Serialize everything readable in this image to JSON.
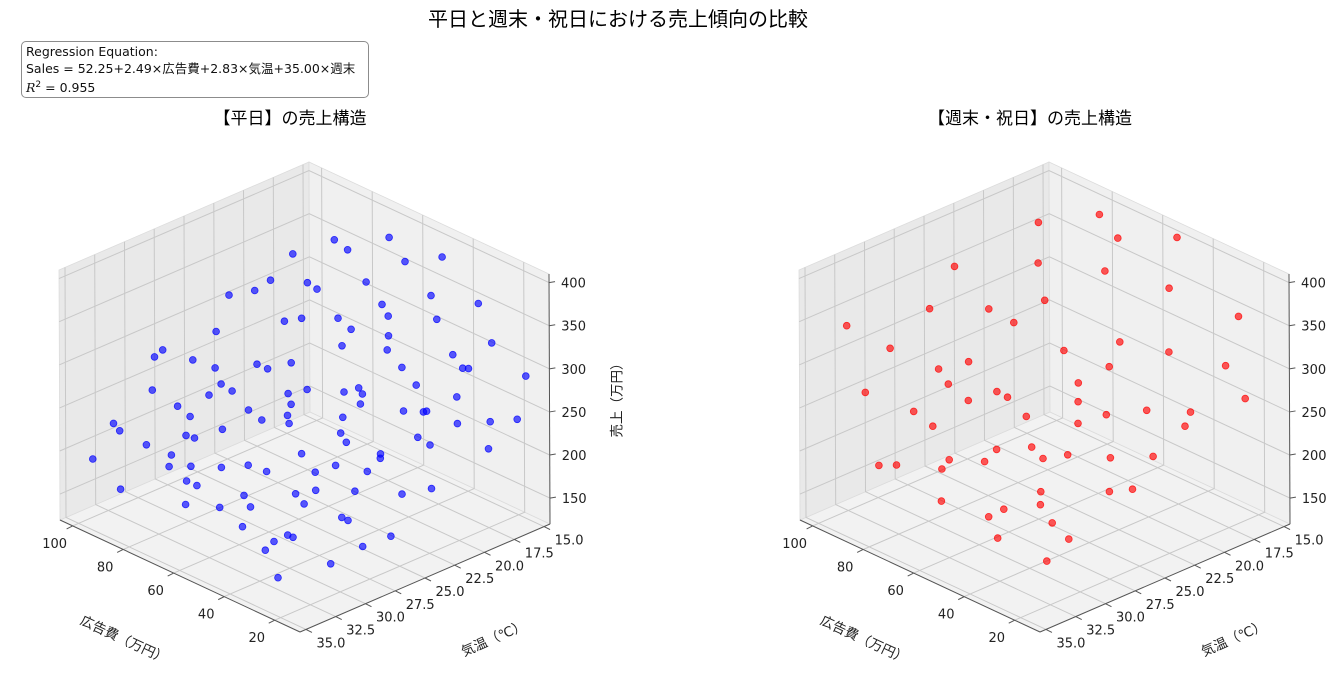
{
  "figure": {
    "title": "平日と週末・祝日における売上傾向の比較",
    "equation": {
      "heading": "Regression Equation:",
      "formula": "Sales = 52.25+2.49×広告費+2.83×気温+35.00×週末",
      "r2_label": "R",
      "r2_value": "= 0.955"
    }
  },
  "chart_data": [
    {
      "type": "scatter",
      "title": "【平日】の売上構造",
      "xlabel": "広告費（万円）",
      "ylabel": "気温（℃）",
      "zlabel": "売上（万円）",
      "xlim": [
        10,
        105
      ],
      "ylim": [
        14.5,
        35.5
      ],
      "zlim": [
        120,
        410
      ],
      "x_ticks": [
        "100",
        "80",
        "60",
        "40",
        "20"
      ],
      "y_ticks": [
        "15.0",
        "17.5",
        "20.0",
        "22.5",
        "25.0",
        "27.5",
        "30.0",
        "32.5",
        "35.0"
      ],
      "z_ticks": [
        "150",
        "200",
        "250",
        "300",
        "350",
        "400"
      ],
      "color": "#0000ff",
      "points": [
        [
          95,
          18,
          338
        ],
        [
          88,
          16,
          352
        ],
        [
          92,
          24,
          330
        ],
        [
          85,
          22,
          345
        ],
        [
          78,
          17,
          360
        ],
        [
          83,
          27,
          318
        ],
        [
          76,
          20,
          335
        ],
        [
          71,
          15,
          372
        ],
        [
          68,
          23,
          330
        ],
        [
          90,
          30,
          305
        ],
        [
          80,
          33,
          290
        ],
        [
          66,
          18,
          345
        ],
        [
          63,
          21,
          325
        ],
        [
          60,
          16,
          365
        ],
        [
          58,
          26,
          310
        ],
        [
          55,
          19,
          340
        ],
        [
          74,
          29,
          300
        ],
        [
          70,
          33,
          285
        ],
        [
          52,
          23,
          320
        ],
        [
          50,
          15,
          378
        ],
        [
          67,
          31,
          290
        ],
        [
          47,
          27,
          300
        ],
        [
          45,
          17,
          352
        ],
        [
          43,
          21,
          332
        ],
        [
          62,
          34,
          268
        ],
        [
          40,
          30,
          288
        ],
        [
          38,
          18,
          340
        ],
        [
          36,
          25,
          305
        ],
        [
          57,
          32,
          270
        ],
        [
          33,
          22,
          315
        ],
        [
          31,
          16,
          356
        ],
        [
          29,
          28,
          280
        ],
        [
          48,
          34,
          250
        ],
        [
          27,
          19,
          320
        ],
        [
          25,
          31,
          258
        ],
        [
          23,
          24,
          290
        ],
        [
          21,
          17,
          330
        ],
        [
          20,
          33,
          240
        ],
        [
          18,
          27,
          265
        ],
        [
          16,
          21,
          298
        ],
        [
          15,
          35,
          220
        ],
        [
          14,
          30,
          245
        ],
        [
          86,
          35,
          255
        ],
        [
          73,
          35,
          248
        ],
        [
          64,
          35,
          235
        ],
        [
          53,
          35,
          228
        ],
        [
          44,
          35,
          215
        ],
        [
          35,
          35,
          205
        ],
        [
          26,
          35,
          190
        ],
        [
          97,
          26,
          260
        ],
        [
          89,
          20,
          280
        ],
        [
          81,
          24,
          265
        ],
        [
          72,
          18,
          282
        ],
        [
          65,
          27,
          240
        ],
        [
          56,
          22,
          255
        ],
        [
          49,
          30,
          220
        ],
        [
          41,
          25,
          235
        ],
        [
          34,
          20,
          250
        ],
        [
          28,
          26,
          225
        ],
        [
          22,
          22,
          240
        ],
        [
          17,
          18,
          250
        ],
        [
          12,
          24,
          215
        ],
        [
          13,
          19,
          230
        ],
        [
          93,
          33,
          225
        ],
        [
          84,
          29,
          230
        ],
        [
          75,
          26,
          232
        ],
        [
          69,
          24,
          222
        ],
        [
          61,
          29,
          205
        ],
        [
          54,
          26,
          210
        ],
        [
          46,
          32,
          195
        ],
        [
          39,
          28,
          200
        ],
        [
          32,
          33,
          180
        ],
        [
          24,
          29,
          195
        ],
        [
          19,
          25,
          205
        ],
        [
          11,
          30,
          185
        ],
        [
          100,
          23,
          210
        ],
        [
          91,
          21,
          228
        ],
        [
          82,
          31,
          200
        ],
        [
          77,
          22,
          212
        ],
        [
          59,
          20,
          225
        ],
        [
          51,
          17,
          240
        ],
        [
          42,
          15,
          260
        ],
        [
          37,
          23,
          210
        ],
        [
          30,
          18,
          230
        ],
        [
          99,
          34,
          190
        ],
        [
          87,
          28,
          195
        ],
        [
          79,
          30,
          185
        ],
        [
          67,
          33,
          175
        ],
        [
          58,
          30,
          180
        ],
        [
          47,
          28,
          185
        ],
        [
          36,
          31,
          170
        ],
        [
          21,
          35,
          165
        ],
        [
          94,
          17,
          300
        ],
        [
          96,
          21,
          312
        ],
        [
          98,
          29,
          280
        ],
        [
          62,
          17,
          305
        ],
        [
          53,
          19,
          290
        ],
        [
          44,
          23,
          275
        ],
        [
          72,
          28,
          270
        ],
        [
          64,
          25,
          260
        ],
        [
          35,
          16,
          275
        ],
        [
          28,
          21,
          265
        ],
        [
          17,
          15,
          285
        ],
        [
          11,
          17,
          255
        ],
        [
          88,
          34,
          170
        ],
        [
          76,
          31,
          178
        ],
        [
          66,
          20,
          200
        ],
        [
          50,
          24,
          190
        ],
        [
          41,
          19,
          205
        ],
        [
          31,
          27,
          170
        ],
        [
          19,
          31,
          160
        ],
        [
          14,
          27,
          175
        ]
      ]
    },
    {
      "type": "scatter",
      "title": "【週末・祝日】の売上構造",
      "xlabel": "広告費（万円）",
      "ylabel": "気温（℃）",
      "zlabel": "売上（万円）",
      "xlim": [
        10,
        105
      ],
      "ylim": [
        14.5,
        35.5
      ],
      "zlim": [
        120,
        410
      ],
      "x_ticks": [
        "100",
        "80",
        "60",
        "40",
        "20"
      ],
      "y_ticks": [
        "15.0",
        "17.5",
        "20.0",
        "22.5",
        "25.0",
        "27.5",
        "30.0",
        "32.5",
        "35.0"
      ],
      "z_ticks": [
        "150",
        "200",
        "250",
        "300",
        "350",
        "400"
      ],
      "color": "#ff0000",
      "points": [
        [
          98,
          33,
          340
        ],
        [
          93,
          25,
          368
        ],
        [
          88,
          19,
          390
        ],
        [
          84,
          29,
          355
        ],
        [
          78,
          16,
          395
        ],
        [
          74,
          22,
          380
        ],
        [
          70,
          27,
          362
        ],
        [
          66,
          17,
          390
        ],
        [
          62,
          24,
          365
        ],
        [
          57,
          20,
          382
        ],
        [
          52,
          15,
          398
        ],
        [
          48,
          31,
          320
        ],
        [
          45,
          26,
          342
        ],
        [
          41,
          18,
          372
        ],
        [
          37,
          23,
          345
        ],
        [
          34,
          34,
          290
        ],
        [
          30,
          28,
          315
        ],
        [
          27,
          21,
          335
        ],
        [
          23,
          16,
          352
        ],
        [
          20,
          31,
          285
        ],
        [
          17,
          25,
          305
        ],
        [
          14,
          19,
          325
        ],
        [
          12,
          35,
          262
        ],
        [
          95,
          30,
          300
        ],
        [
          86,
          34,
          285
        ],
        [
          79,
          23,
          310
        ],
        [
          72,
          30,
          290
        ],
        [
          64,
          33,
          270
        ],
        [
          58,
          28,
          282
        ],
        [
          51,
          35,
          250
        ],
        [
          46,
          22,
          298
        ],
        [
          39,
          30,
          262
        ],
        [
          33,
          25,
          278
        ],
        [
          26,
          32,
          240
        ],
        [
          22,
          27,
          255
        ],
        [
          16,
          22,
          270
        ],
        [
          13,
          29,
          240
        ],
        [
          11,
          18,
          285
        ],
        [
          90,
          27,
          265
        ],
        [
          81,
          31,
          252
        ],
        [
          69,
          35,
          230
        ],
        [
          60,
          26,
          245
        ],
        [
          53,
          31,
          232
        ],
        [
          44,
          28,
          230
        ],
        [
          36,
          33,
          212
        ],
        [
          29,
          35,
          200
        ],
        [
          24,
          23,
          230
        ],
        [
          18,
          26,
          218
        ],
        [
          15,
          32,
          200
        ],
        [
          97,
          23,
          240
        ],
        [
          83,
          26,
          232
        ],
        [
          67,
          31,
          215
        ],
        [
          56,
          34,
          200
        ],
        [
          42,
          33,
          195
        ],
        [
          31,
          30,
          185
        ],
        [
          19,
          33,
          175
        ],
        [
          63,
          21,
          250
        ],
        [
          49,
          24,
          240
        ],
        [
          76,
          35,
          220
        ],
        [
          28,
          19,
          252
        ]
      ]
    }
  ]
}
